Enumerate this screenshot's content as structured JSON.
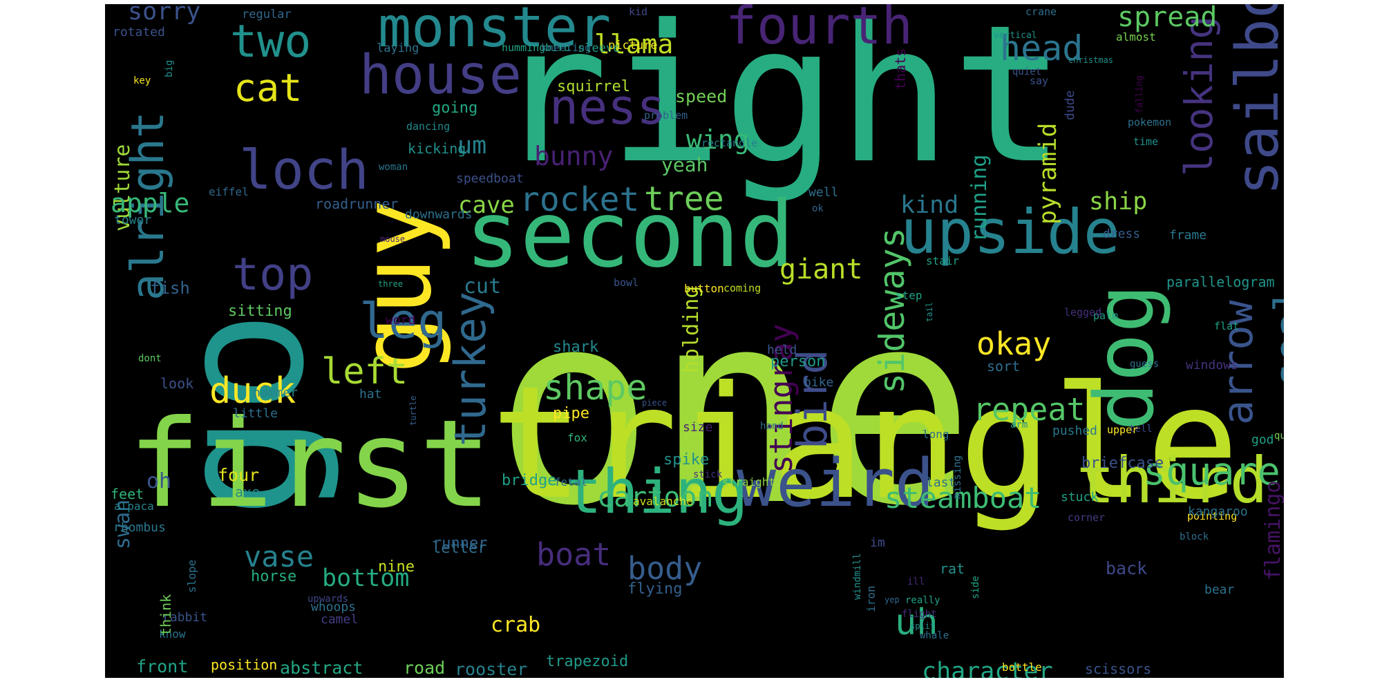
{
  "cloud": {
    "background": "#000000",
    "words": [
      {
        "text": "one",
        "color": "#9fda3a"
      },
      {
        "text": "right",
        "color": "#27ad81"
      },
      {
        "text": "go",
        "color": "#1f948c"
      },
      {
        "text": "triangle",
        "color": "#bddf26"
      },
      {
        "text": "first",
        "color": "#84d44b"
      },
      {
        "text": "second",
        "color": "#35b779"
      },
      {
        "text": "dog",
        "color": "#3fbc73"
      },
      {
        "text": "guy",
        "color": "#fde725"
      },
      {
        "text": "weird",
        "color": "#3b528b"
      },
      {
        "text": "thing",
        "color": "#2db27d"
      },
      {
        "text": "third",
        "color": "#b5de2b"
      },
      {
        "text": "upside",
        "color": "#26828e"
      },
      {
        "text": "sailboat",
        "color": "#3e4a89"
      },
      {
        "text": "monster",
        "color": "#23898e"
      },
      {
        "text": "fourth",
        "color": "#482475"
      },
      {
        "text": "house",
        "color": "#433e85"
      },
      {
        "text": "loch",
        "color": "#414487"
      },
      {
        "text": "ness",
        "color": "#46307e"
      },
      {
        "text": "two",
        "color": "#21918c"
      },
      {
        "text": "cat",
        "color": "#e5e419"
      },
      {
        "text": "alright",
        "color": "#2a788e"
      },
      {
        "text": "top",
        "color": "#424086"
      },
      {
        "text": "leg",
        "color": "#31688e"
      },
      {
        "text": "turkey",
        "color": "#30698e"
      },
      {
        "text": "bird",
        "color": "#3e4c8a"
      },
      {
        "text": "arrow",
        "color": "#3a548c"
      },
      {
        "text": "square",
        "color": "#4ac16d"
      },
      {
        "text": "seal",
        "color": "#2e6e8e"
      },
      {
        "text": "looking",
        "color": "#46337f"
      },
      {
        "text": "sideways",
        "color": "#52c569"
      },
      {
        "text": "stingray",
        "color": "#440154"
      },
      {
        "text": "duck",
        "color": "#fde725"
      },
      {
        "text": "left",
        "color": "#a8db34"
      },
      {
        "text": "shape",
        "color": "#5ec962"
      },
      {
        "text": "repeat",
        "color": "#55c667"
      },
      {
        "text": "okay",
        "color": "#fde725"
      },
      {
        "text": "steamboat",
        "color": "#3dbc74"
      },
      {
        "text": "cartoon",
        "color": "#3bbb75"
      },
      {
        "text": "body",
        "color": "#365d8d"
      },
      {
        "text": "boat",
        "color": "#472d7b"
      },
      {
        "text": "rocket",
        "color": "#2c728e"
      },
      {
        "text": "tree",
        "color": "#6ccd5a"
      },
      {
        "text": "giant",
        "color": "#b8de29"
      },
      {
        "text": "head",
        "color": "#2b748e"
      },
      {
        "text": "spread",
        "color": "#5cc863"
      },
      {
        "text": "llama",
        "color": "#c2df23"
      },
      {
        "text": "wing",
        "color": "#38b977"
      },
      {
        "text": "cave",
        "color": "#8bd646"
      },
      {
        "text": "um",
        "color": "#27808e"
      },
      {
        "text": "bunny",
        "color": "#482173"
      },
      {
        "text": "cut",
        "color": "#297b8e"
      },
      {
        "text": "vase",
        "color": "#26828e"
      },
      {
        "text": "bottom",
        "color": "#25ab82"
      },
      {
        "text": "crab",
        "color": "#fde725"
      },
      {
        "text": "uh",
        "color": "#29af7f"
      },
      {
        "text": "character",
        "color": "#21a685"
      },
      {
        "text": "flamingo",
        "color": "#471365"
      },
      {
        "text": "running",
        "color": "#1fa188"
      },
      {
        "text": "pyramid",
        "color": "#b8de29"
      },
      {
        "text": "ship",
        "color": "#8bd646"
      },
      {
        "text": "kind",
        "color": "#2a778e"
      },
      {
        "text": "holding",
        "color": "#b5de2b"
      },
      {
        "text": "vulture",
        "color": "#a0da39"
      },
      {
        "text": "apple",
        "color": "#37b878"
      },
      {
        "text": "swan",
        "color": "#2f6c8e"
      },
      {
        "text": "oh",
        "color": "#39568c"
      },
      {
        "text": "sorry",
        "color": "#3b528b"
      },
      {
        "text": "yeah",
        "color": "#5ac864"
      },
      {
        "text": "speed",
        "color": "#73d056"
      },
      {
        "text": "squirrel",
        "color": "#b0dd2f"
      },
      {
        "text": "going",
        "color": "#22a884"
      },
      {
        "text": "person",
        "color": "#1f998a"
      },
      {
        "text": "shark",
        "color": "#238a8d"
      },
      {
        "text": "pipe",
        "color": "#fde725"
      },
      {
        "text": "spike",
        "color": "#21918c"
      },
      {
        "text": "bridge",
        "color": "#1fa088"
      },
      {
        "text": "letter",
        "color": "#2e6f8e"
      },
      {
        "text": "runner",
        "color": "#32648e"
      },
      {
        "text": "nine",
        "color": "#c8e020"
      },
      {
        "text": "horse",
        "color": "#26ad81"
      },
      {
        "text": "back",
        "color": "#3e4989"
      },
      {
        "text": "flying",
        "color": "#34608d"
      },
      {
        "text": "four",
        "color": "#e2e418"
      },
      {
        "text": "axe",
        "color": "#228c8d"
      },
      {
        "text": "abstract",
        "color": "#22a785"
      },
      {
        "text": "road",
        "color": "#6ece58"
      },
      {
        "text": "rooster",
        "color": "#26818e"
      },
      {
        "text": "trapezoid",
        "color": "#1e9b8a"
      },
      {
        "text": "front",
        "color": "#20a386"
      },
      {
        "text": "position",
        "color": "#fde725"
      },
      {
        "text": "sitting",
        "color": "#5ec962"
      },
      {
        "text": "hammer",
        "color": "#25848e"
      },
      {
        "text": "little",
        "color": "#2e6e8e"
      },
      {
        "text": "feet",
        "color": "#31b57b"
      },
      {
        "text": "rhombus",
        "color": "#2a788e"
      },
      {
        "text": "alpaca",
        "color": "#25848e"
      },
      {
        "text": "whoops",
        "color": "#2d718e"
      },
      {
        "text": "camel",
        "color": "#433d84"
      },
      {
        "text": "upwards",
        "color": "#3f4788"
      },
      {
        "text": "rabbit",
        "color": "#3a548c"
      },
      {
        "text": "know",
        "color": "#2b758e"
      },
      {
        "text": "think",
        "color": "#6ece58"
      },
      {
        "text": "look",
        "color": "#3b528b"
      },
      {
        "text": "dont",
        "color": "#5ec962"
      },
      {
        "text": "hat",
        "color": "#2c728e"
      },
      {
        "text": "word",
        "color": "#440154"
      },
      {
        "text": "fish",
        "color": "#33638d"
      },
      {
        "text": "tower",
        "color": "#26828e"
      },
      {
        "text": "eiffel",
        "color": "#31688e"
      },
      {
        "text": "roadrunner",
        "color": "#355f8d"
      },
      {
        "text": "downwards",
        "color": "#2c718e"
      },
      {
        "text": "speedboat",
        "color": "#3c508b"
      },
      {
        "text": "kicking",
        "color": "#21918c"
      },
      {
        "text": "dancing",
        "color": "#228b8d"
      },
      {
        "text": "woman",
        "color": "#2a768e"
      },
      {
        "text": "mouse",
        "color": "#482878"
      },
      {
        "text": "three",
        "color": "#20a486"
      },
      {
        "text": "rotated",
        "color": "#3b528b"
      },
      {
        "text": "regular",
        "color": "#31688e"
      },
      {
        "text": "laying",
        "color": "#2c728e"
      },
      {
        "text": "hummingbird",
        "color": "#22a785"
      },
      {
        "text": "kneeling",
        "color": "#2d708e"
      },
      {
        "text": "sleeve",
        "color": "#1f9e89"
      },
      {
        "text": "picture",
        "color": "#f1e51d"
      },
      {
        "text": "kid",
        "color": "#3f4889"
      },
      {
        "text": "crane",
        "color": "#2e6e8e"
      },
      {
        "text": "vertical",
        "color": "#21918c"
      },
      {
        "text": "almost",
        "color": "#7ad151"
      },
      {
        "text": "quiet",
        "color": "#3a548c"
      },
      {
        "text": "christmas",
        "color": "#21918c"
      },
      {
        "text": "key",
        "color": "#fde725"
      },
      {
        "text": "big",
        "color": "#21918c"
      },
      {
        "text": "say",
        "color": "#3b528b"
      },
      {
        "text": "falling",
        "color": "#440154"
      },
      {
        "text": "problem",
        "color": "#33628d"
      },
      {
        "text": "thats",
        "color": "#440154"
      },
      {
        "text": "pokemon",
        "color": "#2c728e"
      },
      {
        "text": "rectangle",
        "color": "#26828e"
      },
      {
        "text": "time",
        "color": "#21918c"
      },
      {
        "text": "dude",
        "color": "#3e4a89"
      },
      {
        "text": "well",
        "color": "#2d708e"
      },
      {
        "text": "ok",
        "color": "#32648e"
      },
      {
        "text": "dress",
        "color": "#355e8d"
      },
      {
        "text": "frame",
        "color": "#2a788e"
      },
      {
        "text": "bowl",
        "color": "#3a548c"
      },
      {
        "text": "button",
        "color": "#fde725"
      },
      {
        "text": "coming",
        "color": "#c2df23"
      },
      {
        "text": "stair",
        "color": "#1fa088"
      },
      {
        "text": "step",
        "color": "#1fa188"
      },
      {
        "text": "parallelogram",
        "color": "#1f958b"
      },
      {
        "text": "flat",
        "color": "#20a486"
      },
      {
        "text": "palm",
        "color": "#1f9f88"
      },
      {
        "text": "tail",
        "color": "#21918c"
      },
      {
        "text": "legged",
        "color": "#46307e"
      },
      {
        "text": "held",
        "color": "#3b528b"
      },
      {
        "text": "bike",
        "color": "#32658e"
      },
      {
        "text": "guess",
        "color": "#2c728e"
      },
      {
        "text": "windows",
        "color": "#46337f"
      },
      {
        "text": "sort",
        "color": "#2e6e8e"
      },
      {
        "text": "tell",
        "color": "#3e4a89"
      },
      {
        "text": "god",
        "color": "#1fa088"
      },
      {
        "text": "piece",
        "color": "#3a548c"
      },
      {
        "text": "size",
        "color": "#482173"
      },
      {
        "text": "hand",
        "color": "#2e6e8e"
      },
      {
        "text": "fox",
        "color": "#31b57b"
      },
      {
        "text": "arm",
        "color": "#20928c"
      },
      {
        "text": "pushed",
        "color": "#2a788e"
      },
      {
        "text": "upper",
        "color": "#fde725"
      },
      {
        "text": "long",
        "color": "#2e6e8e"
      },
      {
        "text": "query",
        "color": "#73d056"
      },
      {
        "text": "briefcase",
        "color": "#3b528b"
      },
      {
        "text": "turtle",
        "color": "#33638d"
      },
      {
        "text": "stick",
        "color": "#46337f"
      },
      {
        "text": "missing",
        "color": "#2c728e"
      },
      {
        "text": "straight",
        "color": "#8fd744"
      },
      {
        "text": "fetal",
        "color": "#2e6e8e"
      },
      {
        "text": "last",
        "color": "#2c728e"
      },
      {
        "text": "avalanche",
        "color": "#d0e11c"
      },
      {
        "text": "stuck",
        "color": "#20a386"
      },
      {
        "text": "corner",
        "color": "#433d84"
      },
      {
        "text": "pointing",
        "color": "#fde725"
      },
      {
        "text": "kangaroo",
        "color": "#2d718e"
      },
      {
        "text": "block",
        "color": "#2e6e8e"
      },
      {
        "text": "slope",
        "color": "#2c728e"
      },
      {
        "text": "windmill",
        "color": "#21918c"
      },
      {
        "text": "iron",
        "color": "#2e6e8e"
      },
      {
        "text": "im",
        "color": "#3e4a89"
      },
      {
        "text": "rat",
        "color": "#21918c"
      },
      {
        "text": "ill",
        "color": "#482878"
      },
      {
        "text": "really",
        "color": "#1fa188"
      },
      {
        "text": "side",
        "color": "#20a486"
      },
      {
        "text": "bear",
        "color": "#2c728e"
      },
      {
        "text": "flight",
        "color": "#46307e"
      },
      {
        "text": "yep",
        "color": "#31688e"
      },
      {
        "text": "split",
        "color": "#21918c"
      },
      {
        "text": "whale",
        "color": "#2d708e"
      },
      {
        "text": "bottle",
        "color": "#fde725"
      },
      {
        "text": "scissors",
        "color": "#3a548c"
      }
    ]
  }
}
